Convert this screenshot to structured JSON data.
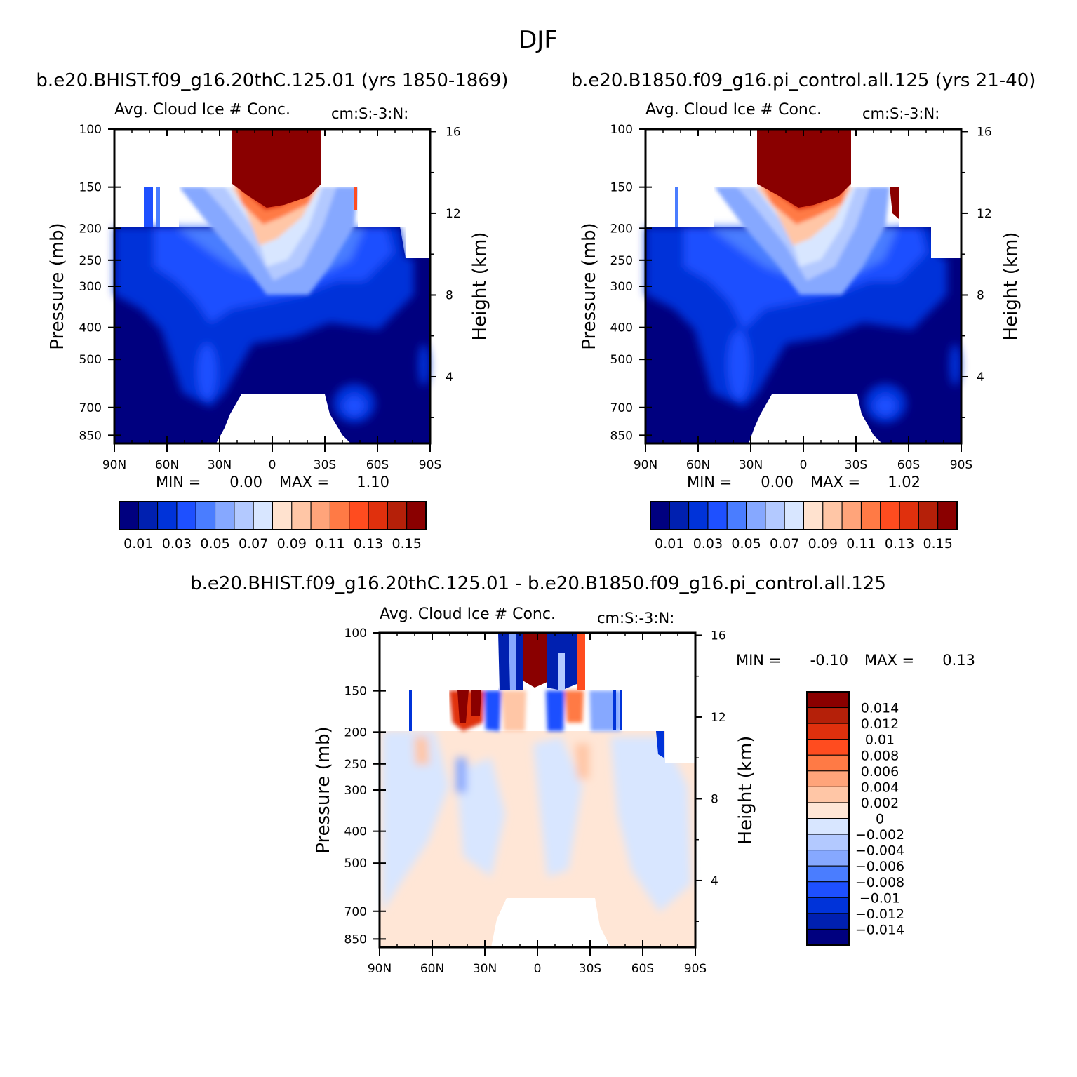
{
  "title": "DJF",
  "colors": {
    "ice_scale": [
      "#00007f",
      "#0020b0",
      "#0033d9",
      "#1e50ff",
      "#4a7dff",
      "#86a8ff",
      "#b3c9ff",
      "#d8e6ff",
      "#ffe2cf",
      "#ffc6a6",
      "#ffa47a",
      "#ff7a45",
      "#ff4c1f",
      "#e0300d",
      "#b52009",
      "#8a0000"
    ],
    "diff_scale": [
      "#00007f",
      "#0020b0",
      "#0033d9",
      "#1e50ff",
      "#4a7dff",
      "#86a8ff",
      "#b3c9ff",
      "#d8e6ff",
      "#ffe6d6",
      "#ffc6a6",
      "#ffa47a",
      "#ff7a45",
      "#ff4c1f",
      "#e0300d",
      "#b52009",
      "#8a0000"
    ]
  },
  "chart_data": [
    {
      "type": "contour",
      "panel": "case",
      "header": "b.e20.BHIST.f09_g16.20thC.125.01 (yrs 1850-1869)",
      "title": "Avg. Cloud Ice # Conc.",
      "units": "cm:S:-3:N:",
      "xlabel": "",
      "ylabel": "Pressure (mb)",
      "ylabel_right": "Height (km)",
      "x_ticks": [
        "90N",
        "60N",
        "30N",
        "0",
        "30S",
        "60S",
        "90S"
      ],
      "y_ticks": [
        "100",
        "150",
        "200",
        "250",
        "300",
        "400",
        "500",
        "700",
        "850"
      ],
      "y_ticks_right": [
        "16",
        "12",
        "8",
        "4"
      ],
      "stats": {
        "min_label": "MIN =",
        "min": "0.00",
        "max_label": "MAX =",
        "max": "1.10"
      },
      "colorbar_labels": [
        "0.01",
        "0.03",
        "0.05",
        "0.07",
        "0.09",
        "0.11",
        "0.13",
        "0.15"
      ],
      "levels": [
        0.01,
        0.02,
        0.03,
        0.04,
        0.05,
        0.06,
        0.07,
        0.08,
        0.09,
        0.1,
        0.11,
        0.12,
        0.13,
        0.14,
        0.15
      ]
    },
    {
      "type": "contour",
      "panel": "control",
      "header": "b.e20.B1850.f09_g16.pi_control.all.125 (yrs 21-40)",
      "title": "Avg. Cloud Ice # Conc.",
      "units": "cm:S:-3:N:",
      "xlabel": "",
      "ylabel": "Pressure (mb)",
      "ylabel_right": "Height (km)",
      "x_ticks": [
        "90N",
        "60N",
        "30N",
        "0",
        "30S",
        "60S",
        "90S"
      ],
      "y_ticks": [
        "100",
        "150",
        "200",
        "250",
        "300",
        "400",
        "500",
        "700",
        "850"
      ],
      "y_ticks_right": [
        "16",
        "12",
        "8",
        "4"
      ],
      "stats": {
        "min_label": "MIN =",
        "min": "0.00",
        "max_label": "MAX =",
        "max": "1.02"
      },
      "colorbar_labels": [
        "0.01",
        "0.03",
        "0.05",
        "0.07",
        "0.09",
        "0.11",
        "0.13",
        "0.15"
      ],
      "levels": [
        0.01,
        0.02,
        0.03,
        0.04,
        0.05,
        0.06,
        0.07,
        0.08,
        0.09,
        0.1,
        0.11,
        0.12,
        0.13,
        0.14,
        0.15
      ]
    },
    {
      "type": "contour",
      "panel": "difference",
      "header": "b.e20.BHIST.f09_g16.20thC.125.01 - b.e20.B1850.f09_g16.pi_control.all.125",
      "title": "Avg. Cloud Ice # Conc.",
      "units": "cm:S:-3:N:",
      "xlabel": "",
      "ylabel": "Pressure (mb)",
      "ylabel_right": "Height (km)",
      "x_ticks": [
        "90N",
        "60N",
        "30N",
        "0",
        "30S",
        "60S",
        "90S"
      ],
      "y_ticks": [
        "100",
        "150",
        "200",
        "250",
        "300",
        "400",
        "500",
        "700",
        "850"
      ],
      "y_ticks_right": [
        "16",
        "12",
        "8",
        "4"
      ],
      "stats": {
        "min_label": "MIN =",
        "min": "-0.10",
        "max_label": "MAX =",
        "max": "0.13"
      },
      "colorbar_labels": [
        "0.014",
        "0.012",
        "0.01",
        "0.008",
        "0.006",
        "0.004",
        "0.002",
        "0",
        "-0.002",
        "-0.004",
        "-0.006",
        "-0.008",
        "-0.01",
        "-0.012",
        "-0.014"
      ]
    }
  ]
}
